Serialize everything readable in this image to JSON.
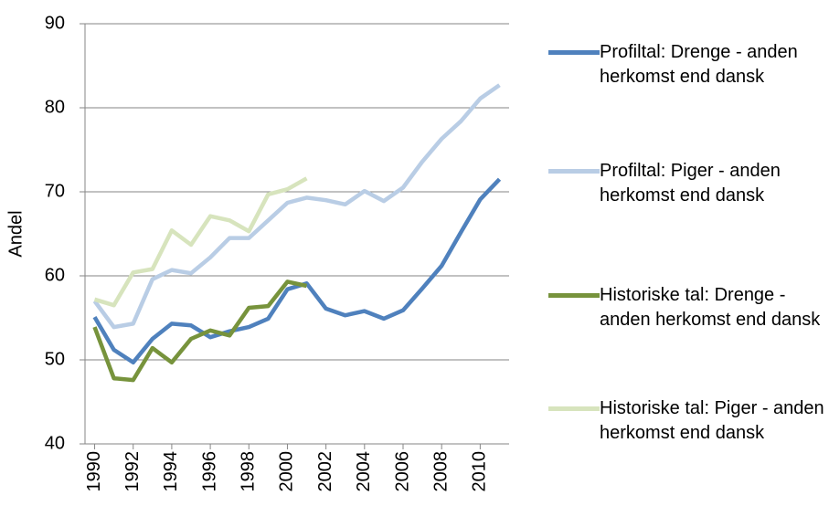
{
  "chart_data": {
    "type": "line",
    "y_label": "Andel",
    "x": [
      1990,
      1991,
      1992,
      1993,
      1994,
      1995,
      1996,
      1997,
      1998,
      1999,
      2000,
      2001,
      2002,
      2003,
      2004,
      2005,
      2006,
      2007,
      2008,
      2009,
      2010,
      2011
    ],
    "xlim": [
      1989.5,
      2011.5
    ],
    "xticks": [
      1990,
      1992,
      1994,
      1996,
      1998,
      2000,
      2002,
      2004,
      2006,
      2008,
      2010
    ],
    "ylim": [
      40,
      90
    ],
    "yticks": [
      40,
      50,
      60,
      70,
      80,
      90
    ],
    "grid": true,
    "legend": "right",
    "series": [
      {
        "name": "Profiltal: Drenge - anden herkomst end dansk",
        "color": "#4f81bd",
        "values": [
          55.1,
          51.2,
          49.7,
          52.5,
          54.3,
          54.1,
          52.7,
          53.4,
          53.9,
          54.9,
          58.4,
          59.1,
          56.1,
          55.3,
          55.8,
          54.9,
          55.9,
          58.5,
          61.2,
          65.2,
          69.1,
          71.5
        ]
      },
      {
        "name": "Profiltal: Piger - anden herkomst end dansk",
        "color": "#b9cde5",
        "values": [
          57.0,
          53.9,
          54.3,
          59.6,
          60.7,
          60.3,
          62.2,
          64.5,
          64.5,
          66.6,
          68.7,
          69.3,
          69.0,
          68.5,
          70.1,
          68.9,
          70.5,
          73.6,
          76.3,
          78.4,
          81.1,
          82.7
        ]
      },
      {
        "name": "Historiske tal: Drenge - anden herkomst end dansk",
        "color": "#77933c",
        "values": [
          53.9,
          47.8,
          47.6,
          51.4,
          49.7,
          52.5,
          53.5,
          52.9,
          56.2,
          56.4,
          59.3,
          58.8,
          null,
          null,
          null,
          null,
          null,
          null,
          null,
          null,
          null,
          null
        ]
      },
      {
        "name": "Historiske tal: Piger - anden herkomst end dansk",
        "color": "#d7e4bd",
        "values": [
          57.2,
          56.5,
          60.4,
          60.8,
          65.4,
          63.7,
          67.1,
          66.6,
          65.3,
          69.7,
          70.3,
          71.6,
          null,
          null,
          null,
          null,
          null,
          null,
          null,
          null,
          null,
          null
        ]
      }
    ]
  }
}
